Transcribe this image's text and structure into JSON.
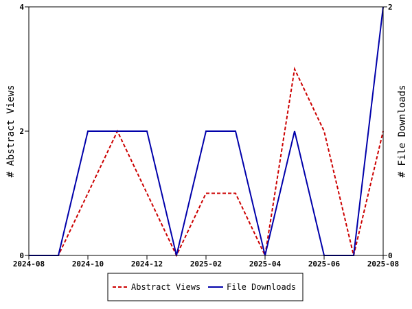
{
  "chart_data": {
    "type": "line",
    "x": [
      "2024-08",
      "2024-09",
      "2024-10",
      "2024-11",
      "2024-12",
      "2025-01",
      "2025-02",
      "2025-03",
      "2025-04",
      "2025-05",
      "2025-06",
      "2025-07",
      "2025-08"
    ],
    "x_ticks": [
      "2024-08",
      "2024-10",
      "2024-12",
      "2025-02",
      "2025-04",
      "2025-06",
      "2025-08"
    ],
    "left_axis": {
      "label": "# Abstract Views",
      "ylim": [
        0,
        4
      ],
      "ticks": [
        "0",
        "2",
        "4"
      ]
    },
    "right_axis": {
      "label": "# File Downloads",
      "ylim": [
        0,
        2
      ],
      "ticks": [
        "0",
        "2"
      ]
    },
    "series": [
      {
        "name": "Abstract Views",
        "axis": "left",
        "color": "#cc0000",
        "style": "dashed",
        "values": [
          0,
          0,
          1,
          2,
          1,
          0,
          1,
          1,
          0,
          3,
          2,
          0,
          2
        ]
      },
      {
        "name": "File Downloads",
        "axis": "right",
        "color": "#0000aa",
        "style": "solid",
        "values": [
          0,
          0,
          1,
          1,
          1,
          0,
          1,
          1,
          0,
          1,
          0,
          0,
          2
        ]
      }
    ],
    "legend_placement": "bottom-center",
    "grid": false
  }
}
